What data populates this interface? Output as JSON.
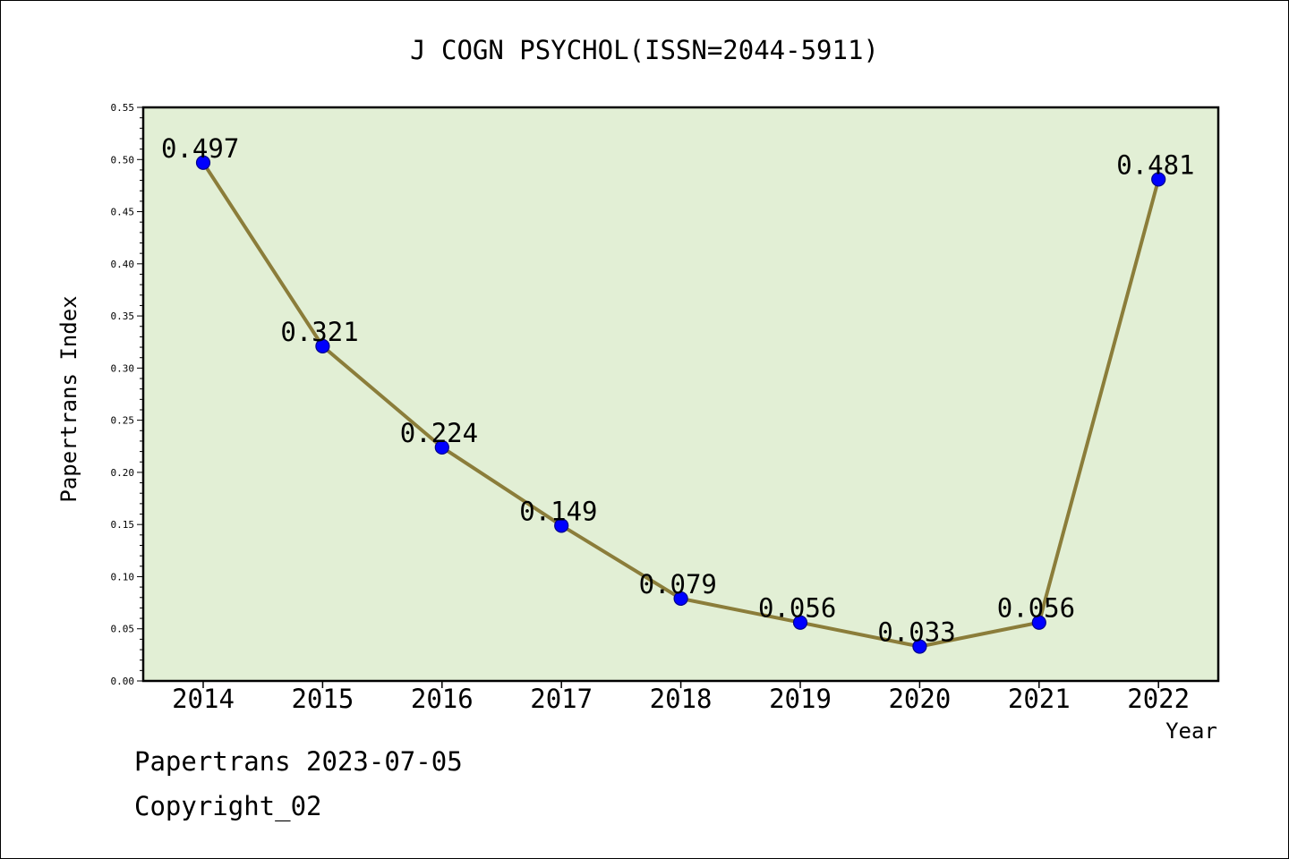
{
  "chart_data": {
    "type": "line",
    "title": "J COGN PSYCHOL(ISSN=2044-5911)",
    "xlabel": "Year",
    "ylabel": "Papertrans Index",
    "categories": [
      "2014",
      "2015",
      "2016",
      "2017",
      "2018",
      "2019",
      "2020",
      "2021",
      "2022"
    ],
    "values": [
      0.497,
      0.321,
      0.224,
      0.149,
      0.079,
      0.056,
      0.033,
      0.056,
      0.481
    ],
    "data_labels": [
      "0.497",
      "0.321",
      "0.224",
      "0.149",
      "0.079",
      "0.056",
      "0.033",
      "0.056",
      "0.481"
    ],
    "ylim": [
      0,
      0.55
    ],
    "yticks": [
      "0.00",
      "0.05",
      "0.10",
      "0.15",
      "0.20",
      "0.25",
      "0.30",
      "0.35",
      "0.40",
      "0.45",
      "0.50",
      "0.55"
    ],
    "grid": false,
    "legend": "none",
    "colors": {
      "plot_background": "#e2efd5",
      "line": "#8b7d3a",
      "marker": "#0000ff",
      "marker_edge": "#00008b"
    }
  },
  "footer": {
    "date_line": "Papertrans 2023-07-05",
    "copyright": "Copyright_02"
  }
}
